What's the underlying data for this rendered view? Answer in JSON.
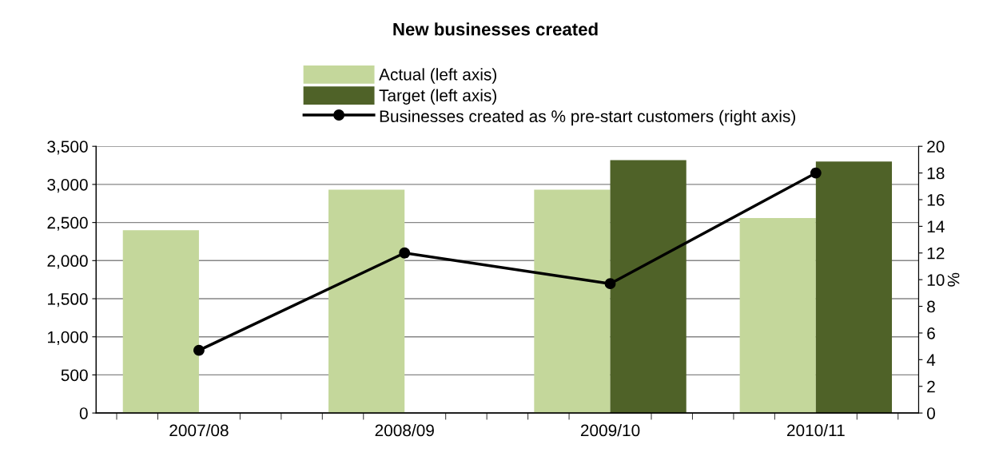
{
  "chart_data": {
    "type": "bar",
    "title": "New businesses created",
    "categories": [
      "2007/08",
      "2008/09",
      "2009/10",
      "2010/11"
    ],
    "series": [
      {
        "name": "Actual (left axis)",
        "color": "#c4d79b",
        "values": [
          2400,
          2930,
          2930,
          2560
        ]
      },
      {
        "name": "Target (left axis)",
        "color": "#4f6228",
        "values": [
          null,
          null,
          3320,
          3300
        ]
      },
      {
        "name": "Businesses created as % pre-start customers (right axis)",
        "type": "line",
        "axis": "y2",
        "color": "#000000",
        "marker": "circle",
        "values": [
          4.7,
          12,
          9.7,
          18
        ]
      }
    ],
    "ylim": [
      0,
      3500
    ],
    "yticks": [
      0,
      {
        "value": 500,
        "label": "500"
      },
      {
        "value": 1000,
        "label": "1,000"
      },
      {
        "value": 1500,
        "label": "1,500"
      },
      {
        "value": 2000,
        "label": "2,000"
      },
      {
        "value": 2500,
        "label": "2,500"
      },
      {
        "value": 3000,
        "label": "3,000"
      },
      {
        "value": 3500,
        "label": "3,500"
      }
    ],
    "y2lim": [
      0,
      20
    ],
    "y2ticks": [
      0,
      2,
      4,
      6,
      8,
      10,
      12,
      14,
      16,
      18,
      20
    ],
    "y2label": "%",
    "grid": "y",
    "legend": "top"
  }
}
